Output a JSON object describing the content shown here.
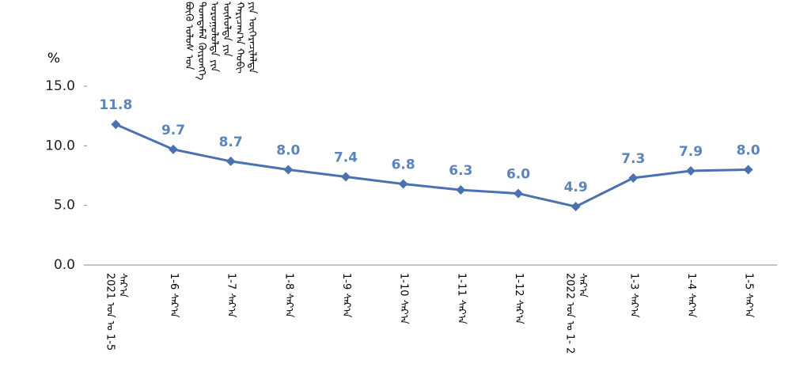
{
  "chart_data": {
    "type": "line",
    "title": "ᠪᠦᠬᠦ ᠤᠯᠤᠰ ᠤᠨ ᠲᠣᠭᠲᠠᠮᠠᠯ ᠬᠥᠷᠥᠩᠭᠡ ᠣᠷᠤᠭᠤᠯᠤᠯᠲᠠ ᠶᠢᠨ ᠥᠰᠦᠯᠲᠡ ᠶᠢᠨ ᠬᠠᠷᠢᠴᠠᠭ᠎ᠠ ᠬᠤᠪᠢ ᠶᠢᠨ ᠥᠭᠡᠷᠡᠴᠢᠯᠡᠯᠲᠡ",
    "y_label": "%",
    "categories": [
      "2021 ᠣᠨ ᠤ 1-5 ᠰᠠᠷ᠎ᠠ",
      "1-6 ᠰᠠᠷ᠎ᠠ",
      "1-7 ᠰᠠᠷ᠎ᠠ",
      "1-8 ᠰᠠᠷ᠎ᠠ",
      "1-9 ᠰᠠᠷ᠎ᠠ",
      "1-10 ᠰᠠᠷ᠎ᠠ",
      "1-11 ᠰᠠᠷ᠎ᠠ",
      "1-12 ᠰᠠᠷ᠎ᠠ",
      "2022 ᠣᠨ ᠤ 1- 2 ᠰᠠᠷ᠎ᠠ",
      "1-3 ᠰᠠᠷ᠎ᠠ",
      "1-4 ᠰᠠᠷ᠎ᠠ",
      "1-5 ᠰᠠᠷ᠎ᠠ"
    ],
    "values": [
      11.8,
      9.7,
      8.7,
      8.0,
      7.4,
      6.8,
      6.3,
      6.0,
      4.9,
      7.3,
      7.9,
      8.0
    ],
    "value_labels": [
      "11.8",
      "9.7",
      "8.7",
      "8.0",
      "7.4",
      "6.8",
      "6.3",
      "6.0",
      "4.9",
      "7.3",
      "7.9",
      "8.0"
    ],
    "color": "#4a72b0",
    "ylim": [
      0,
      15
    ],
    "yticks": [
      {
        "value": 0,
        "label": "0.0"
      },
      {
        "value": 5,
        "label": "5.0"
      },
      {
        "value": 10,
        "label": "10.0"
      },
      {
        "value": 15,
        "label": "15.0"
      }
    ]
  }
}
